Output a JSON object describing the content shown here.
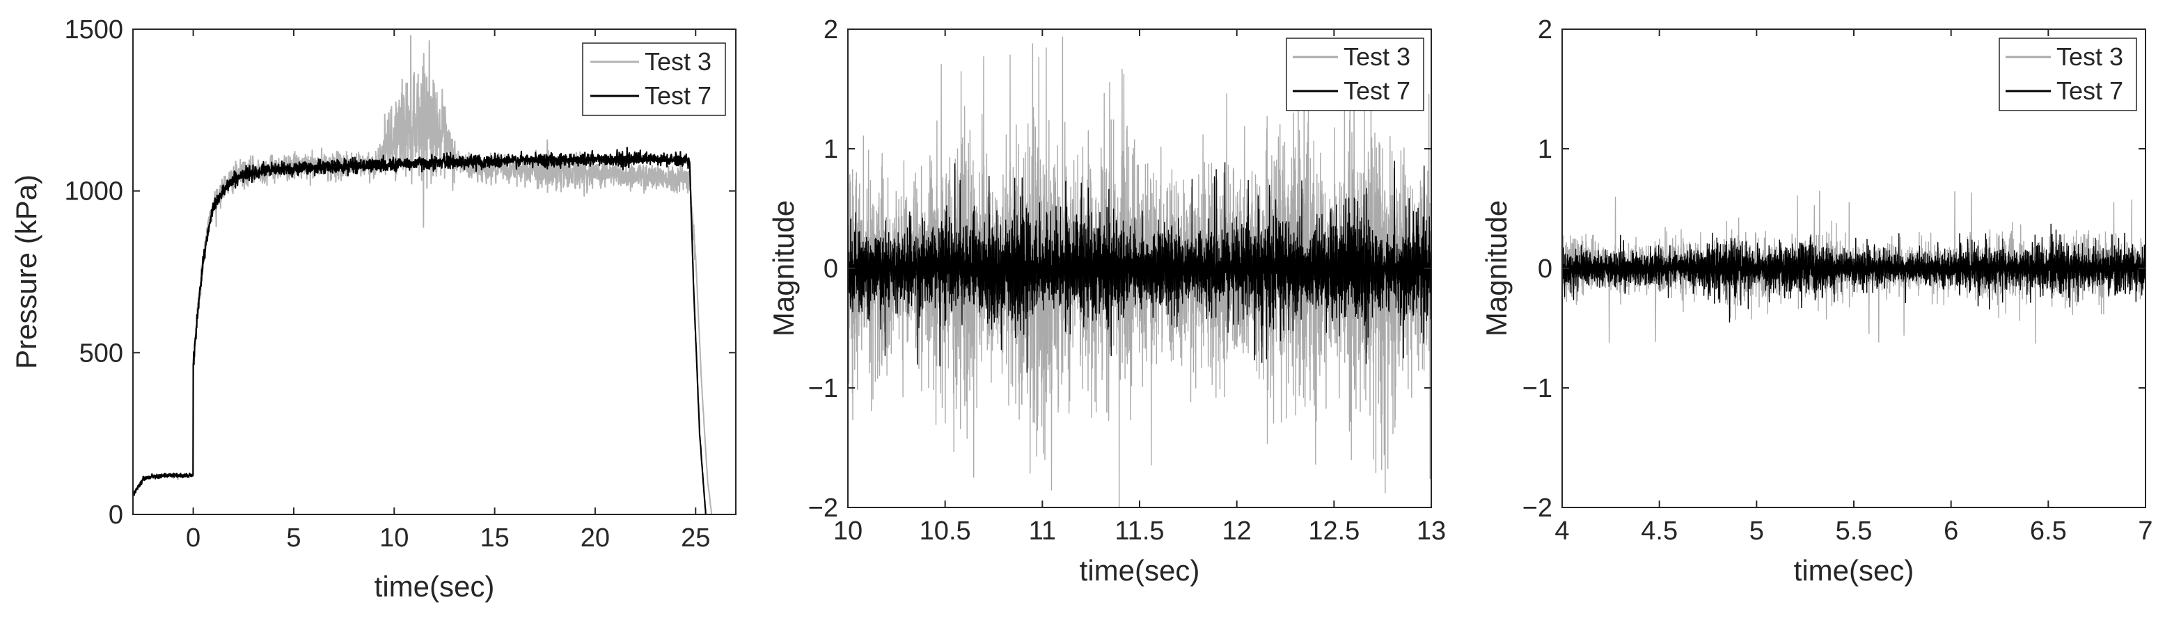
{
  "chart_data": [
    {
      "type": "line",
      "xlabel": "time(sec)",
      "ylabel": "Pressure (kPa)",
      "xlim": [
        -3,
        27
      ],
      "ylim": [
        0,
        1500
      ],
      "xticks": [
        0,
        5,
        10,
        15,
        20,
        25
      ],
      "xtick_labels": [
        "0",
        "5",
        "10",
        "15",
        "20",
        "25"
      ],
      "yticks": [
        0,
        500,
        1000,
        1500
      ],
      "ytick_labels": [
        "0",
        "500",
        "1000",
        "1500"
      ],
      "legend_position": "top-right",
      "legend": [
        "Test 3",
        "Test 7"
      ],
      "series": [
        {
          "name": "Test 3",
          "color": "#b3b3b3",
          "x": [
            -3,
            -2.5,
            -2,
            -1.5,
            -1,
            -0.5,
            -0.01,
            0,
            0.2,
            0.5,
            0.8,
            1.0,
            1.5,
            2,
            2.5,
            3,
            4,
            5,
            6,
            7,
            8,
            9,
            9.5,
            10,
            10.5,
            11,
            11.5,
            12,
            12.5,
            13,
            13.5,
            14,
            15,
            16,
            17,
            18,
            19,
            20,
            21,
            22,
            23,
            24,
            24.7,
            25.0,
            25.3,
            25.6,
            25.8
          ],
          "y": [
            60,
            110,
            118,
            120,
            120,
            120,
            120,
            470,
            620,
            800,
            900,
            960,
            1010,
            1040,
            1055,
            1062,
            1070,
            1075,
            1075,
            1078,
            1080,
            1080,
            1120,
            1160,
            1200,
            1230,
            1230,
            1210,
            1150,
            1100,
            1080,
            1070,
            1068,
            1065,
            1065,
            1062,
            1058,
            1055,
            1050,
            1048,
            1045,
            1042,
            1040,
            800,
            400,
            100,
            0
          ],
          "noise_amplitude": 40
        },
        {
          "name": "Test 7",
          "color": "#000000",
          "x": [
            -3,
            -2.5,
            -2,
            -1.5,
            -1,
            -0.5,
            -0.01,
            0,
            0.2,
            0.5,
            0.8,
            1.0,
            1.5,
            2,
            2.5,
            3,
            4,
            5,
            6,
            7,
            8,
            9,
            10,
            11,
            12,
            13,
            14,
            15,
            16,
            17,
            18,
            19,
            20,
            21,
            22,
            23,
            24,
            24.7,
            24.9,
            25.2,
            25.5
          ],
          "y": [
            60,
            110,
            118,
            120,
            120,
            120,
            120,
            460,
            610,
            790,
            890,
            950,
            1005,
            1035,
            1050,
            1058,
            1065,
            1070,
            1072,
            1075,
            1078,
            1080,
            1082,
            1085,
            1088,
            1090,
            1090,
            1092,
            1094,
            1095,
            1096,
            1097,
            1098,
            1098,
            1098,
            1097,
            1096,
            1095,
            700,
            250,
            0
          ],
          "noise_amplitude": 20
        }
      ]
    },
    {
      "type": "line",
      "xlabel": "time(sec)",
      "ylabel": "Magnitude",
      "xlim": [
        10,
        13
      ],
      "ylim": [
        -2,
        2
      ],
      "xticks": [
        10,
        10.5,
        11,
        11.5,
        12,
        12.5,
        13
      ],
      "xtick_labels": [
        "10",
        "10.5",
        "11",
        "11.5",
        "12",
        "12.5",
        "13"
      ],
      "yticks": [
        -2,
        -1,
        0,
        1,
        2
      ],
      "ytick_labels": [
        "−2",
        "−1",
        "0",
        "1",
        "2"
      ],
      "legend_position": "top-right",
      "legend": [
        "Test 3",
        "Test 7"
      ],
      "series": [
        {
          "name": "Test 3",
          "color": "#aaaaaa",
          "mean": 0,
          "amplitude": 0.85,
          "peak": 1.9
        },
        {
          "name": "Test 7",
          "color": "#000000",
          "mean": 0,
          "amplitude": 0.35,
          "peak": 0.9
        }
      ]
    },
    {
      "type": "line",
      "xlabel": "time(sec)",
      "ylabel": "Magnitude",
      "xlim": [
        4,
        7
      ],
      "ylim": [
        -2,
        2
      ],
      "xticks": [
        4,
        4.5,
        5,
        5.5,
        6,
        6.5,
        7
      ],
      "xtick_labels": [
        "4",
        "4.5",
        "5",
        "5.5",
        "6",
        "6.5",
        "7"
      ],
      "yticks": [
        -2,
        -1,
        0,
        1,
        2
      ],
      "ytick_labels": [
        "−2",
        "−1",
        "0",
        "1",
        "2"
      ],
      "legend_position": "top-right",
      "legend": [
        "Test 3",
        "Test 7"
      ],
      "series": [
        {
          "name": "Test 3",
          "color": "#aaaaaa",
          "mean": 0,
          "amplitude": 0.2,
          "peak": 0.65
        },
        {
          "name": "Test 7",
          "color": "#000000",
          "mean": 0,
          "amplitude": 0.15,
          "peak": 0.3
        }
      ]
    }
  ]
}
